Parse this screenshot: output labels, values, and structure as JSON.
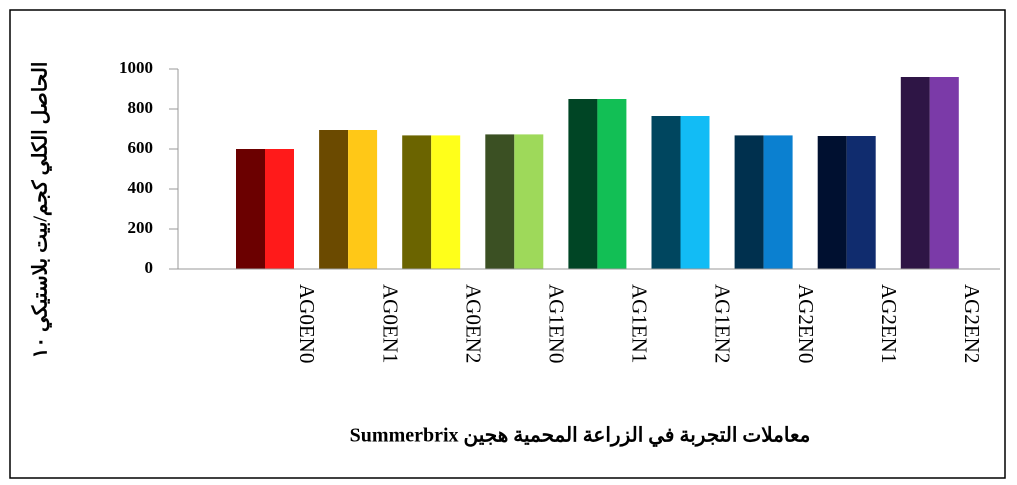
{
  "chart_data": {
    "type": "bar",
    "x_label": "معاملات التجربة في الزراعة المحمية هجين Summerbrix",
    "y_label": "الحاصل الكلي كجم/بيت بلاستيكي ١٠",
    "categories": [
      "AG0EN0",
      "AG0EN1",
      "AG0EN2",
      "AG1EN0",
      "AG1EN1",
      "AG1EN2",
      "AG2EN0",
      "AG2EN1",
      "AG2EN2"
    ],
    "series": [
      {
        "colors": [
          "#6b0000",
          "#6b4a00",
          "#6b6400",
          "#3b5023",
          "#004525",
          "#00465f",
          "#00304e",
          "#001030",
          "#2e1545"
        ],
        "values": [
          600,
          695,
          668,
          673,
          850,
          765,
          668,
          665,
          960
        ]
      },
      {
        "colors": [
          "#ff1a1a",
          "#ffc817",
          "#ffff1a",
          "#9ed95a",
          "#12bf55",
          "#12bcf5",
          "#0b80d0",
          "#102c6e",
          "#7b3aa8"
        ],
        "values": [
          600,
          695,
          668,
          673,
          850,
          765,
          668,
          665,
          960
        ]
      }
    ],
    "ylim": [
      0,
      1000
    ],
    "yticks": [
      0,
      200,
      400,
      600,
      800,
      1000
    ],
    "grid": false
  }
}
